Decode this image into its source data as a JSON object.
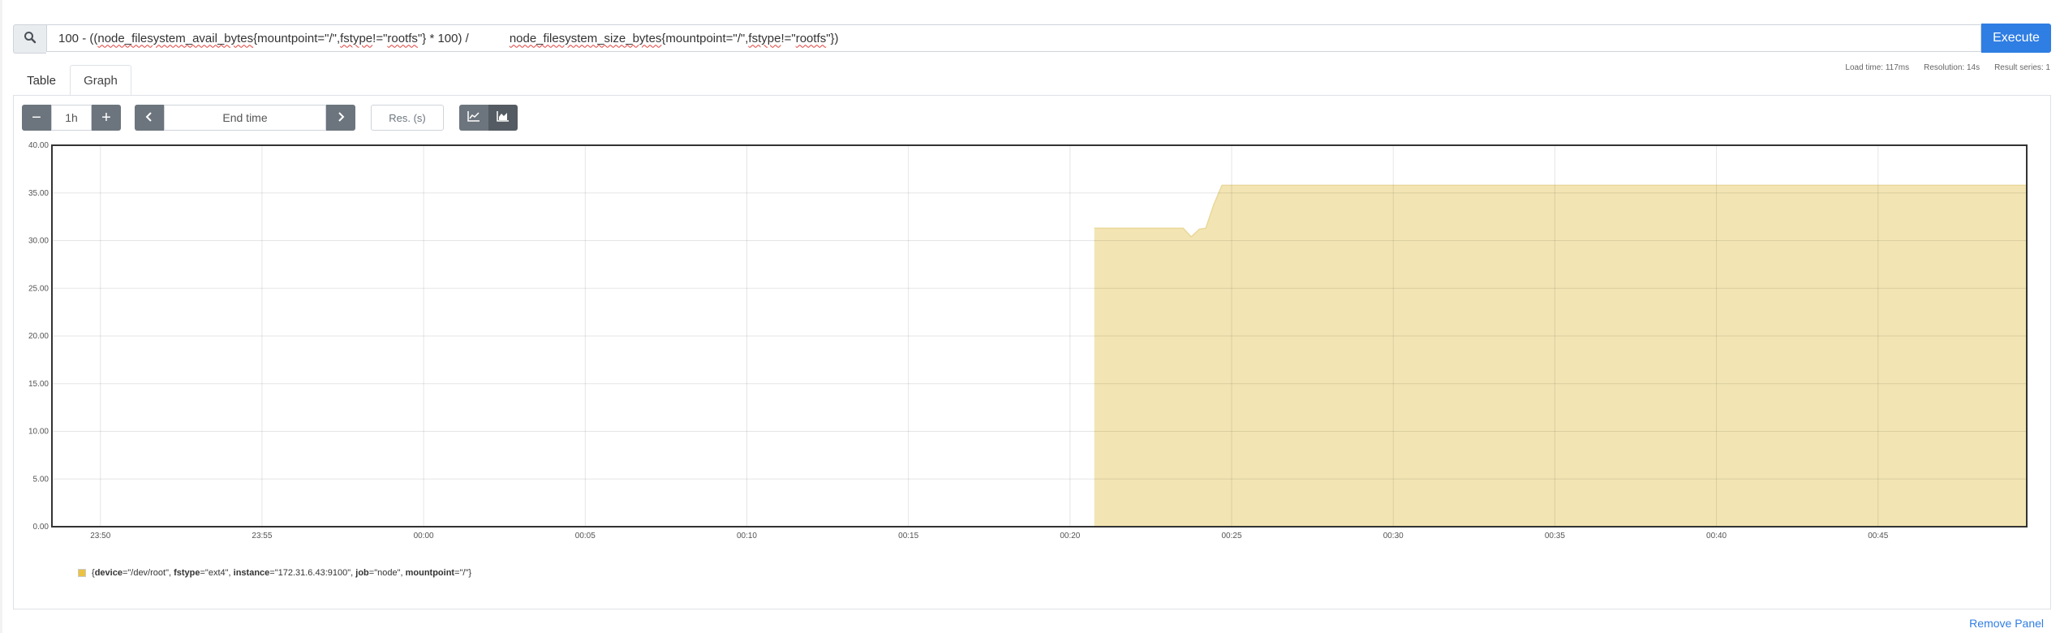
{
  "query": {
    "segments": [
      {
        "text": "100 - ((",
        "err": false
      },
      {
        "text": "node_filesystem_avail_bytes",
        "err": true
      },
      {
        "text": "{mountpoint=\"/\",",
        "err": false
      },
      {
        "text": "fstype",
        "err": true
      },
      {
        "text": "!=\"",
        "err": false
      },
      {
        "text": "rootfs",
        "err": true
      },
      {
        "text": "\"} * 100) /            ",
        "err": false
      },
      {
        "text": "node_filesystem_size_bytes",
        "err": true
      },
      {
        "text": "{mountpoint=\"/\",",
        "err": false
      },
      {
        "text": "fstype",
        "err": true
      },
      {
        "text": "!=\"",
        "err": false
      },
      {
        "text": "rootfs",
        "err": true
      },
      {
        "text": "\"})",
        "err": false
      }
    ],
    "search_icon": "search-icon"
  },
  "execute_label": "Execute",
  "stats": {
    "load_time": "Load time: 117ms",
    "resolution": "Resolution: 14s",
    "result_series": "Result series: 1"
  },
  "tabs": {
    "table": "Table",
    "graph": "Graph"
  },
  "controls": {
    "minus": "−",
    "range": "1h",
    "plus": "+",
    "end_time_placeholder": "End time",
    "resolution_placeholder": "Res. (s)",
    "stacked_icons": [
      "line-chart-icon",
      "stacked-area-icon"
    ]
  },
  "colors": {
    "series": "#edc240",
    "series_fill": "#f3e5b3",
    "accent": "#2f7ee3"
  },
  "chart_data": {
    "type": "area",
    "ylim": [
      0,
      40
    ],
    "y_ticks": [
      "0.00",
      "5.00",
      "10.00",
      "15.00",
      "20.00",
      "25.00",
      "30.00",
      "35.00",
      "40.00"
    ],
    "x_ticks": [
      "23:50",
      "23:55",
      "00:00",
      "00:05",
      "00:10",
      "00:15",
      "00:20",
      "00:25",
      "00:30",
      "00:35",
      "00:40",
      "00:45"
    ],
    "x_range_min": [
      -11.5,
      49.6
    ],
    "series": [
      {
        "name": "{device=\"/dev/root\", fstype=\"ext4\", instance=\"172.31.6.43:9100\", job=\"node\", mountpoint=\"/\"}",
        "points": [
          [
            20.75,
            31.3
          ],
          [
            23.5,
            31.3
          ],
          [
            23.75,
            30.4
          ],
          [
            24.0,
            31.2
          ],
          [
            24.2,
            31.3
          ],
          [
            24.45,
            33.8
          ],
          [
            24.7,
            35.8
          ],
          [
            25.0,
            35.8
          ],
          [
            49.6,
            35.8
          ]
        ]
      }
    ]
  },
  "legend": {
    "device_key": "device",
    "device_val": "=\"/dev/root\", ",
    "fstype_key": "fstype",
    "fstype_val": "=\"ext4\", ",
    "instance_key": "instance",
    "instance_val": "=\"172.31.6.43:9100\", ",
    "job_key": "job",
    "job_val": "=\"node\", ",
    "mountpoint_key": "mountpoint",
    "mountpoint_val": "=\"/\"}"
  },
  "remove_panel": "Remove Panel"
}
